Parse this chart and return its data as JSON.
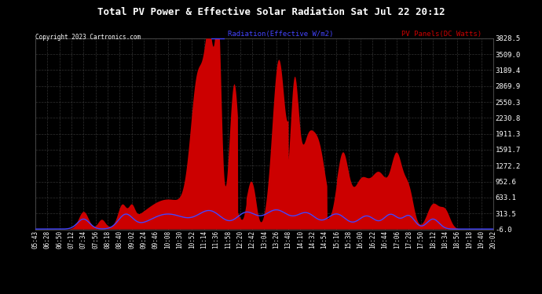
{
  "title": "Total PV Power & Effective Solar Radiation Sat Jul 22 20:12",
  "copyright": "Copyright 2023 Cartronics.com",
  "legend_radiation": "Radiation(Effective W/m2)",
  "legend_pv": "PV Panels(DC Watts)",
  "bg_color": "#000000",
  "plot_bg_color": "#000000",
  "grid_color": "#444444",
  "title_color": "#ffffff",
  "radiation_color": "#4444ff",
  "pv_color": "#cc0000",
  "ylim": [
    -6.0,
    3828.5
  ],
  "yticks": [
    -6.0,
    313.5,
    633.1,
    952.6,
    1272.2,
    1591.7,
    1911.3,
    2230.8,
    2550.3,
    2869.9,
    3189.4,
    3509.0,
    3828.5
  ],
  "xtick_labels": [
    "05:43",
    "06:28",
    "06:50",
    "07:12",
    "07:34",
    "07:56",
    "08:18",
    "08:40",
    "09:02",
    "09:24",
    "09:46",
    "10:08",
    "10:30",
    "10:52",
    "11:14",
    "11:36",
    "11:58",
    "12:20",
    "12:42",
    "13:04",
    "13:26",
    "13:48",
    "14:10",
    "14:32",
    "14:54",
    "15:16",
    "15:38",
    "16:00",
    "16:22",
    "16:44",
    "17:06",
    "17:28",
    "17:50",
    "18:12",
    "18:34",
    "18:56",
    "19:18",
    "19:40",
    "20:02"
  ],
  "n_xticks": 39
}
